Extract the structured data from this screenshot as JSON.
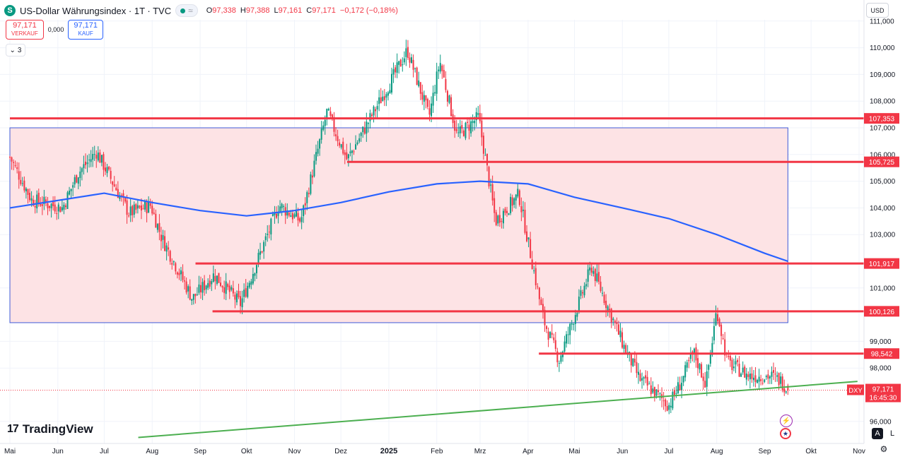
{
  "header": {
    "symbol_icon": "S",
    "title": "US-Dollar Währungsindex · 1T · TVC",
    "market_status_icon": "green-dot",
    "wave_icon": "≈",
    "open_label": "O",
    "open": "97,338",
    "high_label": "H",
    "high": "97,388",
    "low_label": "L",
    "low": "97,161",
    "close_label": "C",
    "close": "97,171",
    "change": "−0,172 (−0,18%)"
  },
  "bid_ask": {
    "sell_price": "97,171",
    "sell_label": "VERKAUF",
    "spread": "0,000",
    "buy_price": "97,171",
    "buy_label": "KAUF"
  },
  "indicator_toggle": {
    "icon": "chevron-down",
    "count": "3"
  },
  "currency_button": "USD",
  "branding": {
    "logo_mark": "17",
    "logo_text": "TradingView"
  },
  "scale_buttons": {
    "auto": "A",
    "log": "L"
  },
  "colors": {
    "up": "#089981",
    "down": "#f23645",
    "ma": "#2962ff",
    "zone_fill": "#fde3e5",
    "trendline": "#4caf50",
    "hline": "#f23645"
  },
  "chart_data": {
    "type": "candlestick",
    "y_range": [
      95.3,
      111.5
    ],
    "x_range": [
      "2024-05-01",
      "2025-11-03"
    ],
    "y_ticks": [
      "111,000",
      "110,000",
      "109,000",
      "108,000",
      "107,000",
      "106,000",
      "105,000",
      "104,000",
      "103,000",
      "101,000",
      "99,000",
      "98,000",
      "96,000"
    ],
    "x_ticks": [
      {
        "label": "Mai",
        "date": "2024-05-01"
      },
      {
        "label": "Jun",
        "date": "2024-06-01"
      },
      {
        "label": "Jul",
        "date": "2024-07-01"
      },
      {
        "label": "Aug",
        "date": "2024-08-01"
      },
      {
        "label": "Sep",
        "date": "2024-09-01"
      },
      {
        "label": "Okt",
        "date": "2024-10-01"
      },
      {
        "label": "Nov",
        "date": "2024-11-01"
      },
      {
        "label": "Dez",
        "date": "2024-12-01"
      },
      {
        "label": "2025",
        "date": "2025-01-01"
      },
      {
        "label": "Feb",
        "date": "2025-02-01"
      },
      {
        "label": "Mrz",
        "date": "2025-03-01"
      },
      {
        "label": "Apr",
        "date": "2025-04-01"
      },
      {
        "label": "Mai",
        "date": "2025-05-01"
      },
      {
        "label": "Jun",
        "date": "2025-06-01"
      },
      {
        "label": "Jul",
        "date": "2025-07-01"
      },
      {
        "label": "Aug",
        "date": "2025-08-01"
      },
      {
        "label": "Sep",
        "date": "2025-09-01"
      },
      {
        "label": "Okt",
        "date": "2025-10-01"
      },
      {
        "label": "Nov",
        "date": "2025-11-01"
      }
    ],
    "price_path": [
      {
        "date": "2024-05-01",
        "close": 105.9
      },
      {
        "date": "2024-05-15",
        "close": 104.3
      },
      {
        "date": "2024-06-04",
        "close": 104.0
      },
      {
        "date": "2024-06-14",
        "close": 105.3
      },
      {
        "date": "2024-06-26",
        "close": 106.1
      },
      {
        "date": "2024-07-17",
        "close": 103.8
      },
      {
        "date": "2024-07-31",
        "close": 104.1
      },
      {
        "date": "2024-08-07",
        "close": 102.9
      },
      {
        "date": "2024-08-27",
        "close": 100.6
      },
      {
        "date": "2024-09-10",
        "close": 101.5
      },
      {
        "date": "2024-09-27",
        "close": 100.4
      },
      {
        "date": "2024-10-22",
        "close": 104.1
      },
      {
        "date": "2024-11-05",
        "close": 103.5
      },
      {
        "date": "2024-11-22",
        "close": 107.6
      },
      {
        "date": "2024-12-05",
        "close": 105.8
      },
      {
        "date": "2024-12-31",
        "close": 108.5
      },
      {
        "date": "2025-01-13",
        "close": 109.9
      },
      {
        "date": "2025-01-27",
        "close": 107.4
      },
      {
        "date": "2025-02-03",
        "close": 109.5
      },
      {
        "date": "2025-02-14",
        "close": 106.7
      },
      {
        "date": "2025-02-28",
        "close": 107.4
      },
      {
        "date": "2025-03-11",
        "close": 103.5
      },
      {
        "date": "2025-03-26",
        "close": 104.5
      },
      {
        "date": "2025-04-11",
        "close": 99.8
      },
      {
        "date": "2025-04-21",
        "close": 98.3
      },
      {
        "date": "2025-05-12",
        "close": 101.8
      },
      {
        "date": "2025-06-02",
        "close": 98.8
      },
      {
        "date": "2025-06-12",
        "close": 97.6
      },
      {
        "date": "2025-07-01",
        "close": 96.6
      },
      {
        "date": "2025-07-10",
        "close": 97.6
      },
      {
        "date": "2025-07-17",
        "close": 98.6
      },
      {
        "date": "2025-07-25",
        "close": 97.4
      },
      {
        "date": "2025-08-01",
        "close": 100.2
      },
      {
        "date": "2025-08-08",
        "close": 98.2
      },
      {
        "date": "2025-08-22",
        "close": 97.7
      },
      {
        "date": "2025-09-05",
        "close": 97.7
      },
      {
        "date": "2025-09-12",
        "close": 97.5
      },
      {
        "date": "2025-09-16",
        "close": 97.171
      }
    ],
    "moving_average": [
      {
        "date": "2024-05-01",
        "value": 104.0
      },
      {
        "date": "2024-07-01",
        "value": 104.55
      },
      {
        "date": "2024-08-01",
        "value": 104.2
      },
      {
        "date": "2024-09-01",
        "value": 103.9
      },
      {
        "date": "2024-10-01",
        "value": 103.7
      },
      {
        "date": "2024-11-01",
        "value": 103.9
      },
      {
        "date": "2024-12-01",
        "value": 104.2
      },
      {
        "date": "2025-01-01",
        "value": 104.6
      },
      {
        "date": "2025-02-01",
        "value": 104.9
      },
      {
        "date": "2025-03-01",
        "value": 105.0
      },
      {
        "date": "2025-04-01",
        "value": 104.9
      },
      {
        "date": "2025-05-01",
        "value": 104.4
      },
      {
        "date": "2025-06-01",
        "value": 104.0
      },
      {
        "date": "2025-07-01",
        "value": 103.6
      },
      {
        "date": "2025-08-01",
        "value": 103.0
      },
      {
        "date": "2025-09-01",
        "value": 102.3
      },
      {
        "date": "2025-09-16",
        "value": 102.0
      }
    ],
    "zone": {
      "y_top": 107.0,
      "y_bottom": 99.7,
      "start": "2024-05-01",
      "end": "2025-09-16"
    },
    "horizontal_levels": [
      {
        "price": 107.353,
        "label": "107,353",
        "start": "2024-05-01"
      },
      {
        "price": 105.725,
        "label": "105,725",
        "start": "2024-12-05"
      },
      {
        "price": 101.917,
        "label": "101,917",
        "start": "2024-08-29"
      },
      {
        "price": 100.126,
        "label": "100,126",
        "start": "2024-09-09"
      },
      {
        "price": 98.542,
        "label": "98,542",
        "start": "2025-04-08"
      }
    ],
    "trendline": {
      "start": {
        "date": "2024-07-23",
        "price": 95.4
      },
      "end": {
        "date": "2025-10-31",
        "price": 97.5
      }
    },
    "last_price": {
      "symbol": "DXY",
      "price": "97,171",
      "value": 97.171,
      "countdown": "16:45:30"
    }
  }
}
